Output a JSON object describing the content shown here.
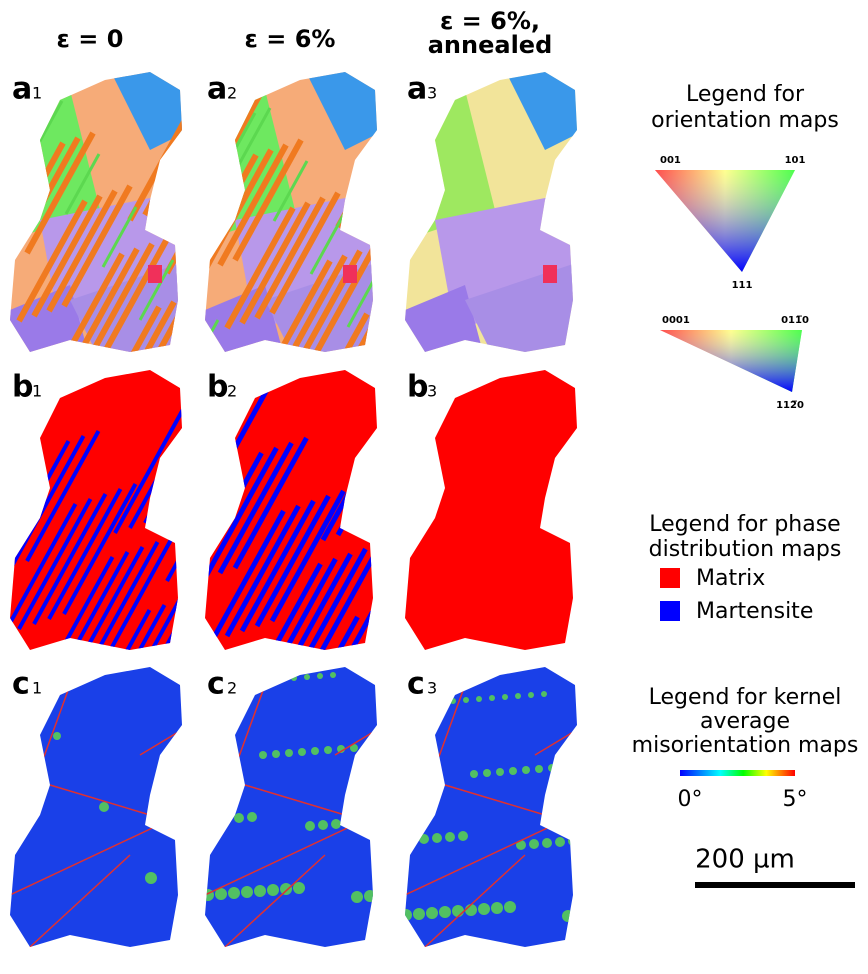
{
  "columns": [
    [
      "ε = 0"
    ],
    [
      "ε = 6%"
    ],
    [
      "ε = 6%,",
      "annealed"
    ]
  ],
  "panels": [
    [
      {
        "letter": "a",
        "index": "1"
      },
      {
        "letter": "a",
        "index": "2"
      },
      {
        "letter": "a",
        "index": "3"
      }
    ],
    [
      {
        "letter": "b",
        "index": "1"
      },
      {
        "letter": "b",
        "index": "2"
      },
      {
        "letter": "b",
        "index": "3"
      }
    ],
    [
      {
        "letter": "c",
        "index": "1"
      },
      {
        "letter": "c",
        "index": "2"
      },
      {
        "letter": "c",
        "index": "3"
      }
    ]
  ],
  "legends": {
    "orientation": {
      "title": [
        "Legend for",
        "orientation maps"
      ],
      "cubic": [
        "001",
        "101",
        "111"
      ],
      "hexagonal": [
        "0001",
        "011̅0",
        "112̅0"
      ]
    },
    "phase": {
      "title": [
        "Legend for phase",
        "distribution maps"
      ],
      "items": [
        {
          "label": "Matrix",
          "color": "#ff0000"
        },
        {
          "label": "Martensite",
          "color": "#0000ff"
        }
      ]
    },
    "kam": {
      "title": [
        "Legend for kernel",
        "average",
        "misorientation maps"
      ],
      "min": "0°",
      "max": "5°"
    },
    "scale": "200 µm"
  }
}
